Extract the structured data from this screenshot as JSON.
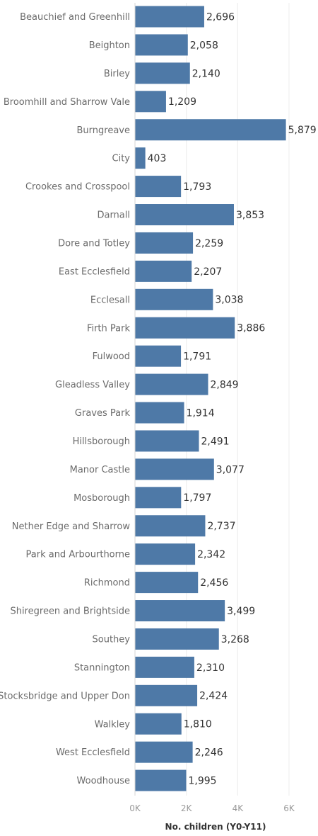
{
  "chart_data": {
    "type": "bar",
    "orientation": "horizontal",
    "title": "",
    "ylabel": "",
    "xlabel": "No. children (Y0-Y11)",
    "xlim": [
      0,
      6000
    ],
    "x_ticks": [
      0,
      2000,
      4000,
      6000
    ],
    "x_tick_labels": [
      "0K",
      "2K",
      "4K",
      "6K"
    ],
    "grid": "vertical gridlines on",
    "bar_color": "#4e79a7",
    "categories": [
      "Beauchief and Greenhill",
      "Beighton",
      "Birley",
      "Broomhill and Sharrow Vale",
      "Burngreave",
      "City",
      "Crookes and Crosspool",
      "Darnall",
      "Dore and Totley",
      "East Ecclesfield",
      "Ecclesall",
      "Firth Park",
      "Fulwood",
      "Gleadless Valley",
      "Graves Park",
      "Hillsborough",
      "Manor Castle",
      "Mosborough",
      "Nether Edge and Sharrow",
      "Park and Arbourthorne",
      "Richmond",
      "Shiregreen and Brightside",
      "Southey",
      "Stannington",
      "Stocksbridge and Upper Don",
      "Walkley",
      "West Ecclesfield",
      "Woodhouse"
    ],
    "values": [
      2696,
      2058,
      2140,
      1209,
      5879,
      403,
      1793,
      3853,
      2259,
      2207,
      3038,
      3886,
      1791,
      2849,
      1914,
      2491,
      3077,
      1797,
      2737,
      2342,
      2456,
      3499,
      3268,
      2310,
      2424,
      1810,
      2246,
      1995
    ],
    "value_labels": [
      "2,696",
      "2,058",
      "2,140",
      "1,209",
      "5,879",
      "403",
      "1,793",
      "3,853",
      "2,259",
      "2,207",
      "3,038",
      "3,886",
      "1,791",
      "2,849",
      "1,914",
      "2,491",
      "3,077",
      "1,797",
      "2,737",
      "2,342",
      "2,456",
      "3,499",
      "3,268",
      "2,310",
      "2,424",
      "1,810",
      "2,246",
      "1,995"
    ]
  }
}
